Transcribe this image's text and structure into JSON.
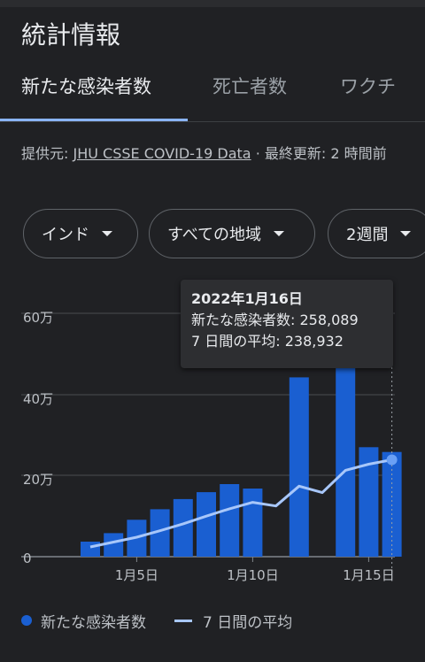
{
  "header": {
    "title": "統計情報"
  },
  "tabs": [
    {
      "label": "新たな感染者数",
      "active": true
    },
    {
      "label": "死亡者数",
      "active": false
    },
    {
      "label": "ワクチ",
      "active": false
    }
  ],
  "source": {
    "prefix": "提供元: ",
    "link": "JHU CSSE COVID-19 Data",
    "suffix": " · 最終更新: 2 時間前"
  },
  "filters": [
    {
      "label": "インド"
    },
    {
      "label": "すべての地域"
    },
    {
      "label": "2週間"
    }
  ],
  "tooltip": {
    "date": "2022年1月16日",
    "new_cases": "新たな感染者数: 258,089",
    "average": "7 日間の平均: 238,932"
  },
  "legend": {
    "bars": "新たな感染者数",
    "line": "7 日間の平均"
  },
  "colors": {
    "bar": "#1a5fd1",
    "line": "#a8c7fa",
    "marker": "#6aa0f5",
    "accent": "#8ab4f8"
  },
  "chart_data": {
    "type": "bar",
    "y_tick_labels": [
      "0",
      "20万",
      "40万",
      "60万"
    ],
    "x_tick_labels": [
      "1月5日",
      "1月10日",
      "1月15日"
    ],
    "ylim": [
      0,
      600000
    ],
    "grid": true,
    "bar_days": [
      3,
      4,
      5,
      6,
      7,
      8,
      9,
      10,
      12,
      14,
      15,
      16
    ],
    "bar_values": [
      37000,
      58000,
      91000,
      117000,
      142000,
      159000,
      179000,
      168000,
      442000,
      482000,
      270000,
      258089
    ],
    "line_days": [
      3,
      4,
      5,
      6,
      7,
      8,
      9,
      10,
      11,
      12,
      13,
      14,
      15,
      16
    ],
    "line_values": [
      24000,
      36000,
      48000,
      64000,
      81000,
      100000,
      118000,
      134000,
      125000,
      174000,
      158000,
      213000,
      228000,
      238932
    ],
    "selected_day": 16,
    "x_tick_days": [
      5,
      10,
      15
    ],
    "series": [
      {
        "name": "新たな感染者数"
      },
      {
        "name": "7 日間の平均"
      }
    ]
  }
}
